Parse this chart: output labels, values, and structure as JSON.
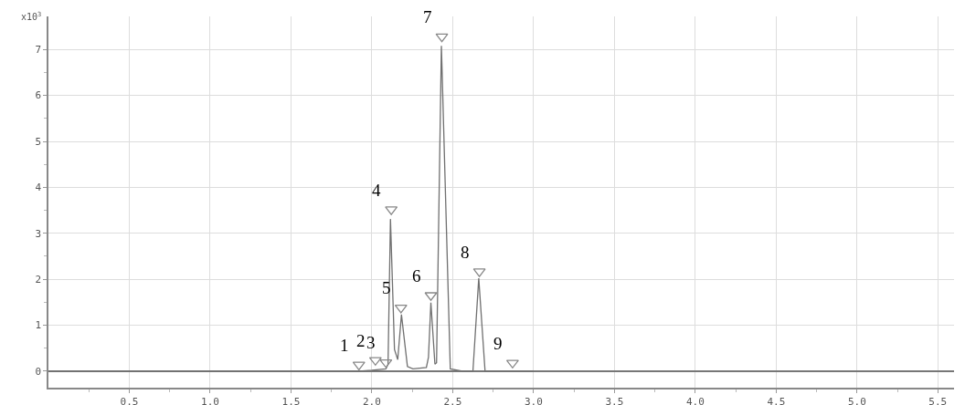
{
  "chart_data": {
    "type": "line",
    "ylabel": "x10$^{3}$",
    "xlim": [
      0,
      5.6
    ],
    "ylim": [
      -0.36,
      7.72
    ],
    "xticks": [
      {
        "value": 0.25,
        "label": null
      },
      {
        "value": 0.5,
        "label": "0.5"
      },
      {
        "value": 0.75,
        "label": null
      },
      {
        "value": 1,
        "label": "1.0"
      },
      {
        "value": 1.25,
        "label": null
      },
      {
        "value": 1.5,
        "label": "1.5"
      },
      {
        "value": 1.75,
        "label": null
      },
      {
        "value": 2,
        "label": "2.0"
      },
      {
        "value": 2.25,
        "label": null
      },
      {
        "value": 2.5,
        "label": "2.5"
      },
      {
        "value": 2.75,
        "label": null
      },
      {
        "value": 3,
        "label": "3.0"
      },
      {
        "value": 3.25,
        "label": null
      },
      {
        "value": 3.5,
        "label": "3.5"
      },
      {
        "value": 3.75,
        "label": null
      },
      {
        "value": 4,
        "label": "4.0"
      },
      {
        "value": 4.25,
        "label": null
      },
      {
        "value": 4.5,
        "label": "4.5"
      },
      {
        "value": 4.75,
        "label": null
      },
      {
        "value": 5,
        "label": "5.0"
      },
      {
        "value": 5.25,
        "label": null
      },
      {
        "value": 5.5,
        "label": "5.5"
      }
    ],
    "yticks": [
      0,
      {
        "value": 0.5,
        "label": null
      },
      1,
      {
        "value": 1.5,
        "label": null
      },
      2,
      {
        "value": 2.5,
        "label": null
      },
      3,
      {
        "value": 3.5,
        "label": null
      },
      4,
      {
        "value": 4.5,
        "label": null
      },
      5,
      {
        "value": 5.5,
        "label": null
      },
      6,
      {
        "value": 6.5,
        "label": null
      },
      7
    ],
    "grid": true,
    "series": [
      {
        "color": "#707070",
        "marker": "none",
        "line_style": "solid",
        "x": [
          0,
          1.92,
          2.0,
          2.087,
          2.1,
          2.115,
          2.14,
          2.16,
          2.183,
          2.22,
          2.254,
          2.337,
          2.35,
          2.365,
          2.39,
          2.4,
          2.43,
          2.485,
          2.56,
          2.625,
          2.661,
          2.7,
          3.0
        ],
        "values": [
          0,
          0,
          0.02,
          0.05,
          0.15,
          3.31,
          0.47,
          0.25,
          1.23,
          0.1,
          0.05,
          0.08,
          0.3,
          1.49,
          0.15,
          0.18,
          7.08,
          0.05,
          0,
          0,
          2.02,
          0,
          0
        ]
      },
      {
        "type": "scatter",
        "color": "#888888",
        "marker": "triangle",
        "x": [
          1.92,
          2.022,
          2.087,
          2.12,
          2.18,
          2.365,
          2.433,
          2.665,
          2.87
        ],
        "values": [
          0.14,
          0.24,
          0.19,
          3.52,
          1.38,
          1.65,
          7.28,
          2.17,
          0.18
        ]
      }
    ],
    "annotations": [
      {
        "text": "1",
        "x": 1.92,
        "y": 0.14
      },
      {
        "text": "2",
        "x": 2.022,
        "y": 0.24
      },
      {
        "text": "3",
        "x": 2.087,
        "y": 0.19
      },
      {
        "text": "4",
        "x": 2.12,
        "y": 3.52
      },
      {
        "text": "5",
        "x": 2.18,
        "y": 1.38
      },
      {
        "text": "6",
        "x": 2.365,
        "y": 1.65
      },
      {
        "text": "7",
        "x": 2.433,
        "y": 7.28
      },
      {
        "text": "8",
        "x": 2.665,
        "y": 2.17
      },
      {
        "text": "9",
        "x": 2.87,
        "y": 0.18
      }
    ]
  }
}
